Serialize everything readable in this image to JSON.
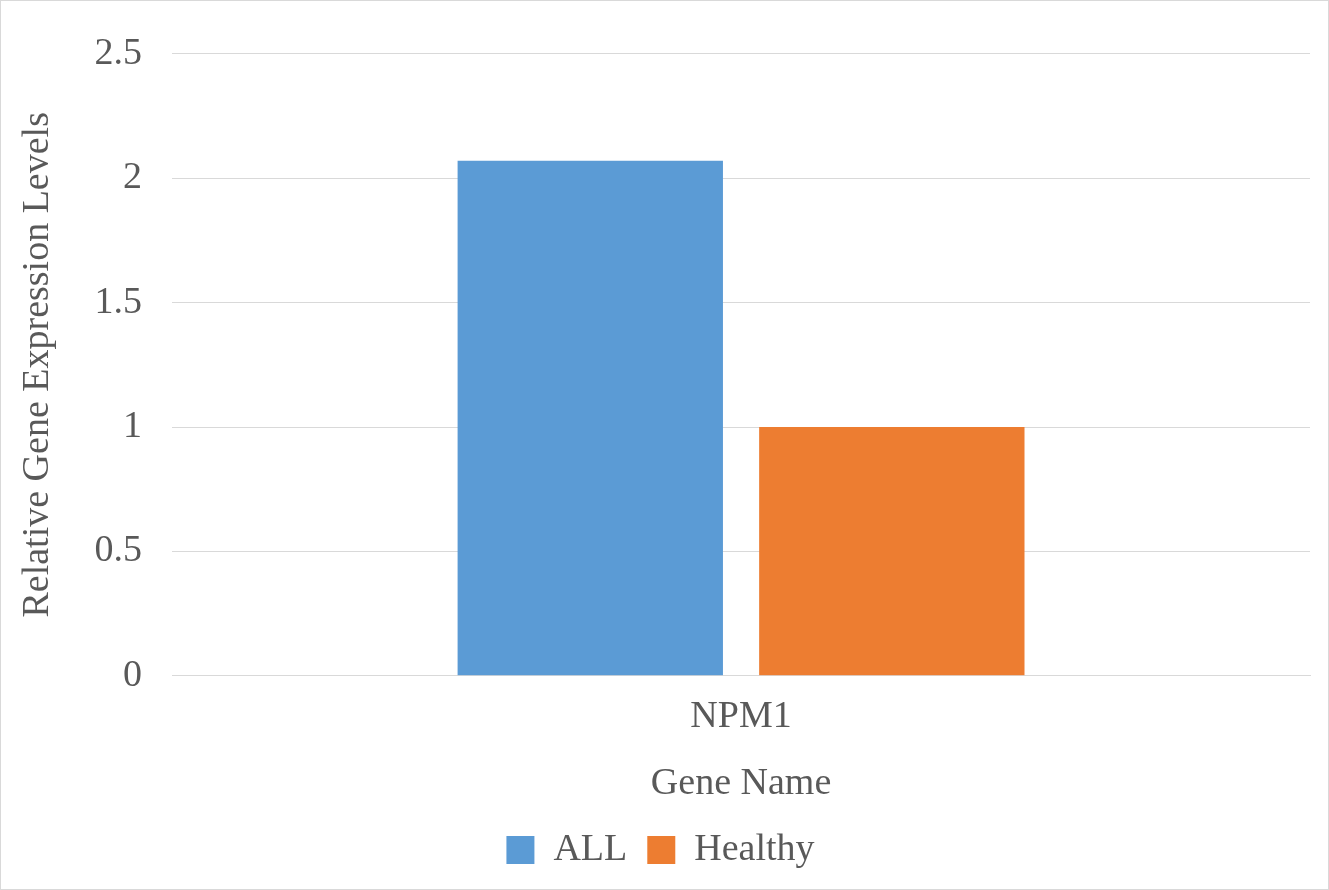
{
  "chart_data": {
    "type": "bar",
    "xlabel": "Gene Name",
    "ylabel": "Relative Gene Expression Levels",
    "categories": [
      "NPM1"
    ],
    "series": [
      {
        "name": "ALL",
        "color": "#5b9bd5",
        "values": [
          2.07
        ]
      },
      {
        "name": "Healthy",
        "color": "#ed7d31",
        "values": [
          1.0
        ]
      }
    ],
    "ylim": [
      0,
      2.5
    ],
    "yticks": [
      0,
      0.5,
      1,
      1.5,
      2,
      2.5
    ],
    "grid": "y",
    "legend": "bottom"
  }
}
